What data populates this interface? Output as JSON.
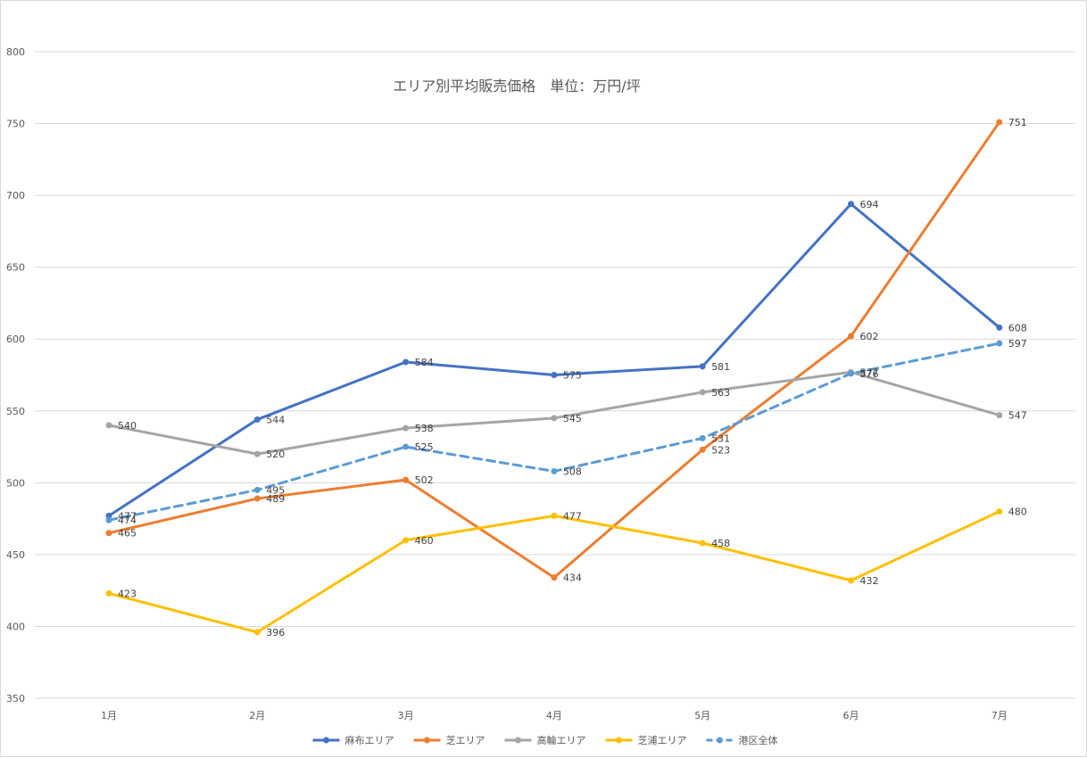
{
  "chart_data": {
    "type": "line",
    "title": "エリア別平均販売価格　単位：万円/坪",
    "categories": [
      "1月",
      "2月",
      "3月",
      "4月",
      "5月",
      "6月",
      "7月"
    ],
    "ylim": [
      350,
      800
    ],
    "yticks": [
      350,
      400,
      450,
      500,
      550,
      600,
      650,
      700,
      750,
      800
    ],
    "grid": true,
    "legend_position": "bottom",
    "series": [
      {
        "name": "麻布エリア",
        "color": "#4472C4",
        "dashed": false,
        "values": [
          477,
          544,
          584,
          575,
          581,
          694,
          608
        ]
      },
      {
        "name": "芝エリア",
        "color": "#ED7D31",
        "dashed": false,
        "values": [
          465,
          489,
          502,
          434,
          523,
          602,
          751
        ]
      },
      {
        "name": "高輪エリア",
        "color": "#A5A5A5",
        "dashed": false,
        "values": [
          540,
          520,
          538,
          545,
          563,
          577,
          547
        ]
      },
      {
        "name": "芝浦エリア",
        "color": "#FFC000",
        "dashed": false,
        "values": [
          423,
          396,
          460,
          477,
          458,
          432,
          480
        ]
      },
      {
        "name": "港区全体",
        "color": "#5B9BD5",
        "dashed": true,
        "values": [
          474,
          495,
          525,
          508,
          531,
          576,
          597
        ]
      }
    ]
  }
}
